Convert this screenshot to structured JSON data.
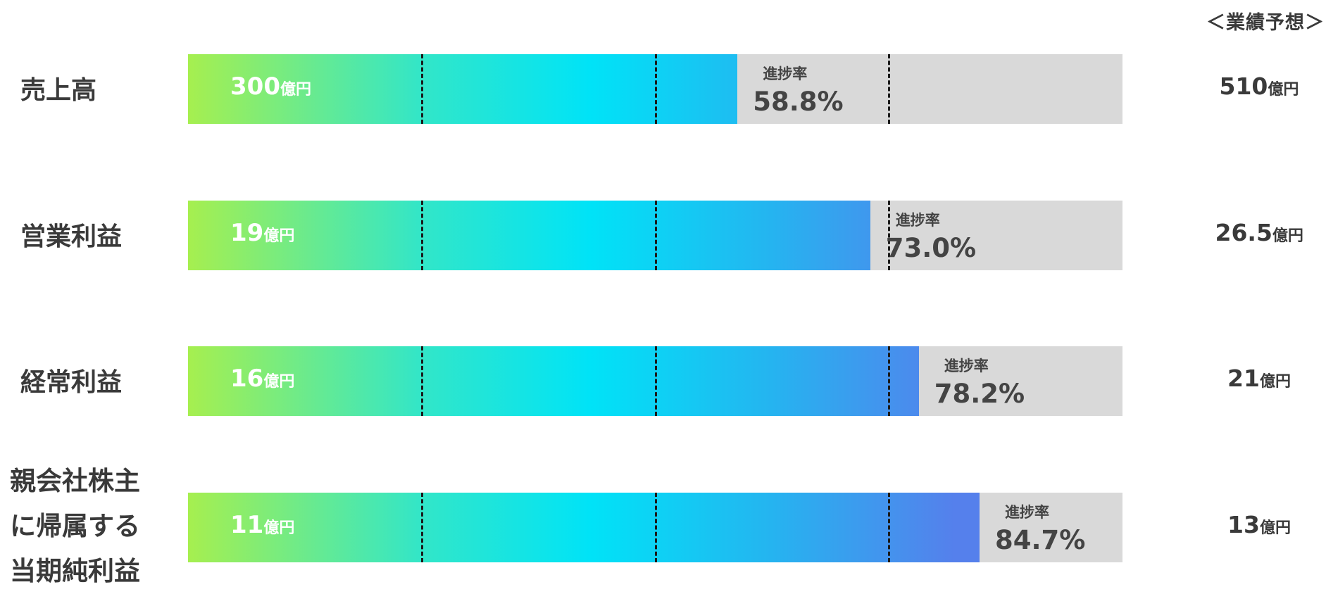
{
  "chart_data": {
    "type": "bar",
    "forecast_header": "＜業績予想＞",
    "progress_label": "進捗率",
    "unit": "億円",
    "gradient_colors": [
      "#a6ef4f",
      "#32e6c8",
      "#00e3f7",
      "#24b5f0",
      "#5580ec"
    ],
    "track_color": "#d9d9d9",
    "divider_fractions": [
      0.25,
      0.5,
      0.75
    ],
    "rows": [
      {
        "label_lines": [
          "売上高"
        ],
        "actual": "300",
        "progress": 58.8,
        "progress_text": "58.8%",
        "forecast": "510"
      },
      {
        "label_lines": [
          "営業利益"
        ],
        "actual": "19",
        "progress": 73.0,
        "progress_text": "73.0%",
        "forecast": "26.5"
      },
      {
        "label_lines": [
          "経常利益"
        ],
        "actual": "16",
        "progress": 78.2,
        "progress_text": "78.2%",
        "forecast": "21"
      },
      {
        "label_lines": [
          "親会社株主",
          "に帰属する",
          "当期純利益"
        ],
        "actual": "11",
        "progress": 84.7,
        "progress_text": "84.7%",
        "forecast": "13"
      }
    ]
  }
}
